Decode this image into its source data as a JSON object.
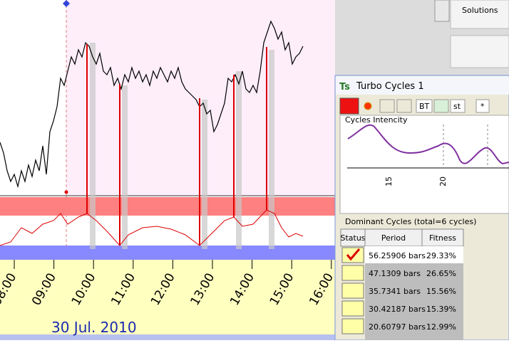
{
  "chart": {
    "time_labels": [
      "08:00",
      "09:00",
      "10:00",
      "11:00",
      "12:00",
      "13:00",
      "14:00",
      "15:00",
      "16:00"
    ],
    "date": "30 Jul. 2010"
  },
  "sidebar": {
    "solutions": "Solutions"
  },
  "window": {
    "title": "Turbo Cycles 1",
    "buttons": [
      "BT",
      "st",
      "*"
    ],
    "intensity": {
      "title": "Cycles Intencity",
      "ticks": [
        "15",
        "20"
      ]
    },
    "table": {
      "caption": "Dominant Cycles (total=6 cycles)",
      "headers": [
        "Status",
        "Period",
        "Fitness"
      ],
      "rows": [
        [
          "56.25906 bars",
          "29.33%"
        ],
        [
          "47.1309 bars",
          "26.65%"
        ],
        [
          "35.7341 bars",
          "15.56%"
        ],
        [
          "30.42187 bars",
          "15.39%"
        ],
        [
          "20.60797 bars",
          "12.99%"
        ]
      ]
    }
  }
}
